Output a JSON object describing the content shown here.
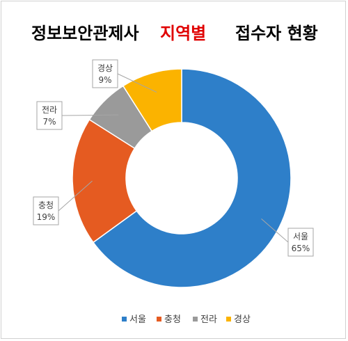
{
  "title": {
    "part1": "정보보안관제사",
    "part2": "지역별",
    "part3": "접수자 현황",
    "accent_color": "#e00000"
  },
  "chart_data": {
    "type": "doughnut",
    "categories": [
      "서울",
      "충청",
      "전라",
      "경상"
    ],
    "values": [
      65,
      19,
      7,
      9
    ],
    "value_labels": [
      "65%",
      "19%",
      "7%",
      "9%"
    ],
    "colors": [
      "#2e7fc9",
      "#e55b21",
      "#9a9a9a",
      "#fbb300"
    ],
    "legend_position": "bottom"
  }
}
